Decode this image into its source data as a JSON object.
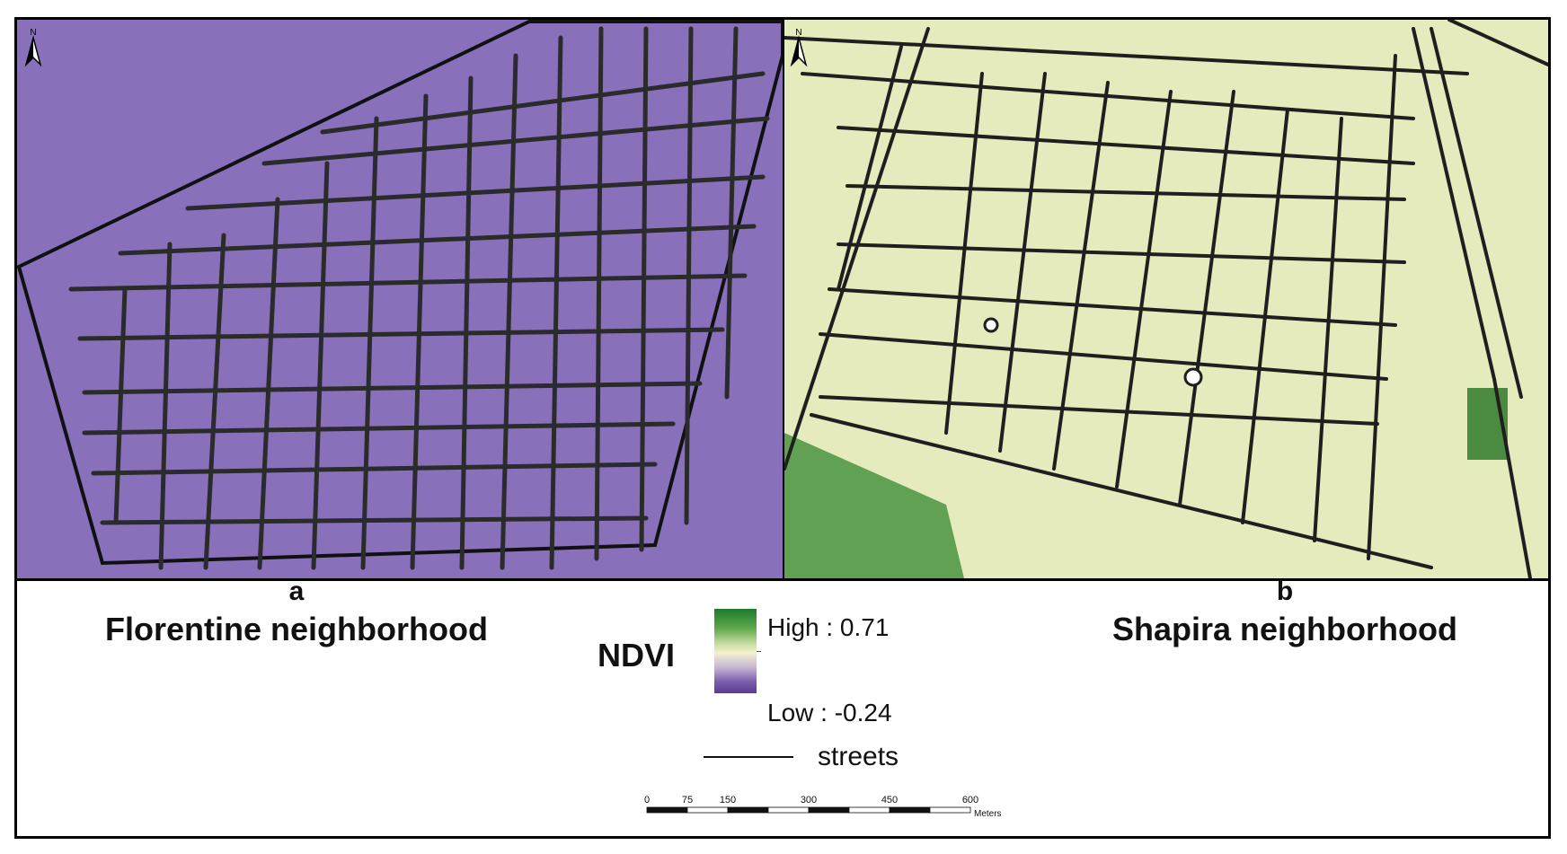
{
  "panels": [
    {
      "letter": "a",
      "name": "Florentine neighborhood",
      "north_label": "N"
    },
    {
      "letter": "b",
      "name": "Shapira neighborhood",
      "north_label": "N"
    }
  ],
  "legend": {
    "title": "NDVI",
    "high": "High : 0.71",
    "low": "Low : -0.24",
    "high_value": 0.71,
    "low_value": -0.24,
    "ramp_colors": [
      "#1f7a2c",
      "#5aa64a",
      "#f3f1cf",
      "#7d5fae",
      "#5a3a93"
    ],
    "streets_label": "streets"
  },
  "scale_bar": {
    "ticks": [
      "0",
      "75",
      "150",
      "300",
      "450",
      "600"
    ],
    "tick_values": [
      0,
      75,
      150,
      300,
      450,
      600
    ],
    "unit": "Meters"
  },
  "colors": {
    "background_purple": "#9a86c4",
    "vegetation_green": "#3f8f3a",
    "light_yellow": "#eef0c8",
    "street": "#2a2a2a"
  }
}
